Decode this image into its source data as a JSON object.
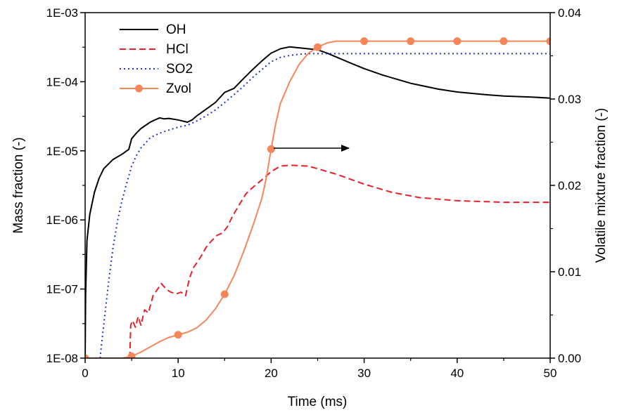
{
  "chart_data": {
    "type": "line",
    "xlabel": "Time (ms)",
    "ylabel_left": "Mass fraction (-)",
    "ylabel_right": "Volatile mixture fraction (-)",
    "xlim": [
      0,
      50
    ],
    "ylim_left": [
      1e-08,
      0.001
    ],
    "ylim_right": [
      0,
      0.04
    ],
    "y_left_scale": "log",
    "x_ticks": [
      0,
      10,
      20,
      30,
      40,
      50
    ],
    "x_tick_labels": [
      "0",
      "10",
      "20",
      "30",
      "40",
      "50"
    ],
    "y_left_ticks": [
      1e-08,
      1e-07,
      1e-06,
      1e-05,
      0.0001,
      0.001
    ],
    "y_left_tick_labels": [
      "1E-08",
      "1E-07",
      "1E-06",
      "1E-05",
      "1E-04",
      "1E-03"
    ],
    "y_right_ticks": [
      0,
      0.01,
      0.02,
      0.03,
      0.04
    ],
    "y_right_tick_labels": [
      "0.00",
      "0.01",
      "0.02",
      "0.03",
      "0.04"
    ],
    "legend": "top-left",
    "grid": false,
    "annotation": "arrow pointing right from Zvol curve to right axis",
    "series": [
      {
        "name": "OH",
        "axis": "left",
        "style": "solid",
        "color": "#000000",
        "x": [
          0,
          0.05,
          0.2,
          0.5,
          1,
          1.5,
          2,
          3,
          4,
          4.7,
          5,
          5.5,
          6,
          7,
          7.5,
          8,
          8.5,
          9,
          10,
          11,
          11.5,
          12,
          13,
          14,
          15,
          16,
          17,
          18,
          19,
          20,
          21,
          22,
          23,
          24,
          25,
          26,
          28,
          30,
          32,
          35,
          38,
          40,
          43,
          45,
          48,
          50
        ],
        "y": [
          1e-08,
          8e-08,
          5e-07,
          1.2e-06,
          2.5e-06,
          4e-06,
          5.5e-06,
          7.5e-06,
          9e-06,
          1.05e-05,
          1.5e-05,
          1.8e-05,
          2.1e-05,
          2.6e-05,
          2.8e-05,
          3e-05,
          2.9e-05,
          2.95e-05,
          2.8e-05,
          2.6e-05,
          2.8e-05,
          3.2e-05,
          4e-05,
          5e-05,
          7e-05,
          8e-05,
          0.00011,
          0.00015,
          0.0002,
          0.00026,
          0.0003,
          0.00032,
          0.00031,
          0.0003,
          0.00029,
          0.00026,
          0.0002,
          0.000155,
          0.000125,
          9.5e-05,
          7.8e-05,
          7.1e-05,
          6.5e-05,
          6.2e-05,
          6e-05,
          5.8e-05
        ]
      },
      {
        "name": "HCl",
        "axis": "left",
        "style": "dashed",
        "color": "#e8202a",
        "x": [
          4.8,
          4.9,
          5.1,
          5.4,
          5.7,
          6,
          6.4,
          6.8,
          7.3,
          7.8,
          8.2,
          8.7,
          9.2,
          9.8,
          10.3,
          10.8,
          11.2,
          11.6,
          12.1,
          12.6,
          13,
          13.6,
          14.2,
          14.8,
          15.3,
          15.8,
          16.5,
          17.3,
          18.2,
          19.2,
          20,
          21,
          22,
          24,
          25,
          27,
          30,
          33,
          36,
          40,
          45,
          50
        ],
        "y": [
          1e-08,
          3e-08,
          3.5e-08,
          2.8e-08,
          4e-08,
          3e-08,
          5e-08,
          4.5e-08,
          8e-08,
          1e-07,
          1.2e-07,
          1e-07,
          9e-08,
          8.5e-08,
          9e-08,
          8e-08,
          1.4e-07,
          2e-07,
          2.5e-07,
          3.2e-07,
          4e-07,
          5e-07,
          6e-07,
          6.5e-07,
          8e-07,
          1.1e-06,
          1.6e-06,
          2.4e-06,
          3.1e-06,
          4e-06,
          5e-06,
          6e-06,
          6.2e-06,
          6e-06,
          5.5e-06,
          4.6e-06,
          3.3e-06,
          2.5e-06,
          2.1e-06,
          1.9e-06,
          1.8e-06,
          1.8e-06
        ]
      },
      {
        "name": "SO2",
        "axis": "left",
        "style": "dotted",
        "color": "#1a32d6",
        "x": [
          1.6,
          2,
          2.5,
          3,
          3.5,
          4,
          4.5,
          5,
          5.5,
          6,
          6.5,
          7,
          8,
          9,
          10,
          11,
          12,
          13,
          14,
          15,
          16,
          17,
          18,
          19,
          20,
          21,
          22,
          23,
          24,
          25,
          27,
          30,
          35,
          40,
          45,
          50
        ],
        "y": [
          1e-08,
          3e-08,
          1.2e-07,
          4e-07,
          1e-06,
          2e-06,
          3.5e-06,
          6e-06,
          8.5e-06,
          1.1e-05,
          1.3e-05,
          1.55e-05,
          1.8e-05,
          2e-05,
          2.2e-05,
          2.35e-05,
          2.7e-05,
          3.2e-05,
          3.9e-05,
          5e-05,
          6.5e-05,
          8.5e-05,
          0.000115,
          0.00015,
          0.000195,
          0.000225,
          0.00024,
          0.00025,
          0.000255,
          0.000255,
          0.000255,
          0.000255,
          0.000255,
          0.000255,
          0.000255,
          0.000255
        ]
      },
      {
        "name": "Zvol",
        "axis": "right",
        "style": "solid-marker",
        "color": "#f5865a",
        "x": [
          0,
          4,
          5,
          6,
          7,
          8,
          9,
          10,
          11,
          12,
          13,
          14,
          15,
          16,
          17,
          18,
          19,
          19.5,
          20,
          20.5,
          21,
          22,
          23,
          24,
          25,
          26,
          27,
          28,
          30,
          35,
          40,
          45,
          50
        ],
        "y": [
          0,
          0,
          0.0002,
          0.0007,
          0.0013,
          0.0019,
          0.0024,
          0.0027,
          0.003,
          0.0035,
          0.0044,
          0.0057,
          0.0074,
          0.0095,
          0.0122,
          0.0152,
          0.0185,
          0.021,
          0.0242,
          0.0272,
          0.0295,
          0.032,
          0.034,
          0.0353,
          0.036,
          0.0365,
          0.0367,
          0.0367,
          0.0367,
          0.0367,
          0.0367,
          0.0367,
          0.0367
        ],
        "marker_x": [
          0,
          5,
          10,
          15,
          20,
          25,
          30,
          35,
          40,
          45,
          50
        ],
        "marker_y": [
          0,
          0.0002,
          0.0027,
          0.0074,
          0.0242,
          0.036,
          0.0367,
          0.0367,
          0.0367,
          0.0367,
          0.0367
        ]
      }
    ]
  }
}
